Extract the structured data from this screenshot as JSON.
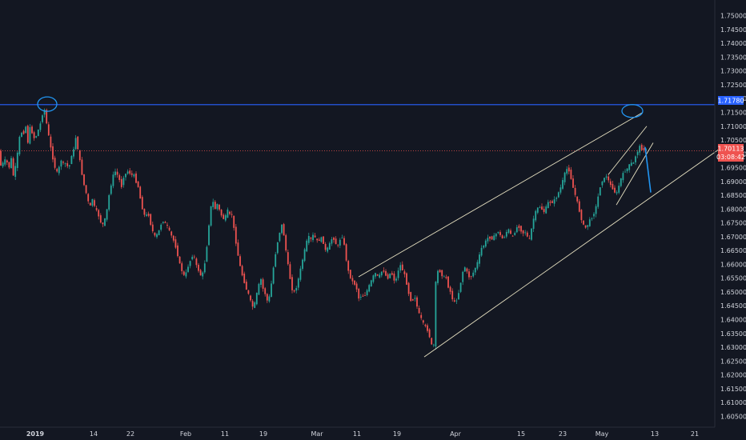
{
  "chart_data": {
    "type": "candlestick",
    "title": "",
    "grid": false,
    "colors": {
      "background": "#131722",
      "up": "#26a69a",
      "down": "#ef5350",
      "trendline": "#e8e2c2",
      "horizontal_level": "#2962ff",
      "price_line": "#ef5350",
      "projection": "#2196f3",
      "axis_text": "#d1d4dc"
    },
    "ylim": [
      1.6025,
      1.7525
    ],
    "y_ticks": [
      "1.75000",
      "1.74500",
      "1.74000",
      "1.73500",
      "1.73000",
      "1.72500",
      "1.72000",
      "1.71500",
      "1.71000",
      "1.70500",
      "1.70000",
      "1.69500",
      "1.69000",
      "1.68500",
      "1.68000",
      "1.67500",
      "1.67000",
      "1.66500",
      "1.66000",
      "1.65500",
      "1.65000",
      "1.64500",
      "1.64000",
      "1.63500",
      "1.63000",
      "1.62500",
      "1.62000",
      "1.61500",
      "1.61000",
      "1.60500"
    ],
    "x_ticks": [
      "2019",
      "14",
      "22",
      "Feb",
      "11",
      "19",
      "Mar",
      "11",
      "19",
      "Apr",
      "15",
      "23",
      "May",
      "13",
      "21"
    ],
    "price_path": [
      [
        0,
        1.695
      ],
      [
        6,
        1.697
      ],
      [
        9,
        1.6985
      ],
      [
        12,
        1.694
      ],
      [
        15,
        1.699
      ],
      [
        18,
        1.692
      ],
      [
        21,
        1.696
      ],
      [
        24,
        1.702
      ],
      [
        27,
        1.709
      ],
      [
        30,
        1.706
      ],
      [
        33,
        1.711
      ],
      [
        36,
        1.704
      ],
      [
        39,
        1.71
      ],
      [
        42,
        1.707
      ],
      [
        45,
        1.705
      ],
      [
        48,
        1.708
      ],
      [
        51,
        1.71
      ],
      [
        54,
        1.714
      ],
      [
        57,
        1.716
      ],
      [
        60,
        1.71
      ],
      [
        63,
        1.705
      ],
      [
        66,
        1.7
      ],
      [
        69,
        1.696
      ],
      [
        72,
        1.693
      ],
      [
        75,
        1.695
      ],
      [
        78,
        1.698
      ],
      [
        81,
        1.696
      ],
      [
        84,
        1.697
      ],
      [
        87,
        1.694
      ],
      [
        90,
        1.699
      ],
      [
        93,
        1.701
      ],
      [
        96,
        1.706
      ],
      [
        99,
        1.701
      ],
      [
        102,
        1.696
      ],
      [
        105,
        1.69
      ],
      [
        108,
        1.687
      ],
      [
        111,
        1.683
      ],
      [
        114,
        1.681
      ],
      [
        117,
        1.684
      ],
      [
        120,
        1.68
      ],
      [
        123,
        1.679
      ],
      [
        126,
        1.676
      ],
      [
        129,
        1.674
      ],
      [
        132,
        1.676
      ],
      [
        135,
        1.68
      ],
      [
        138,
        1.686
      ],
      [
        141,
        1.69
      ],
      [
        144,
        1.694
      ],
      [
        147,
        1.693
      ],
      [
        150,
        1.691
      ],
      [
        153,
        1.688
      ],
      [
        156,
        1.692
      ],
      [
        159,
        1.693
      ],
      [
        162,
        1.694
      ],
      [
        165,
        1.692
      ],
      [
        168,
        1.693
      ],
      [
        171,
        1.69
      ],
      [
        174,
        1.688
      ],
      [
        177,
        1.683
      ],
      [
        180,
        1.679
      ],
      [
        183,
        1.677
      ],
      [
        186,
        1.679
      ],
      [
        189,
        1.675
      ],
      [
        192,
        1.672
      ],
      [
        195,
        1.67
      ],
      [
        198,
        1.671
      ],
      [
        201,
        1.673
      ],
      [
        204,
        1.676
      ],
      [
        207,
        1.675
      ],
      [
        210,
        1.674
      ],
      [
        213,
        1.672
      ],
      [
        216,
        1.67
      ],
      [
        219,
        1.668
      ],
      [
        222,
        1.665
      ],
      [
        225,
        1.661
      ],
      [
        228,
        1.658
      ],
      [
        231,
        1.656
      ],
      [
        234,
        1.657
      ],
      [
        237,
        1.66
      ],
      [
        240,
        1.662
      ],
      [
        243,
        1.664
      ],
      [
        246,
        1.66
      ],
      [
        249,
        1.658
      ],
      [
        252,
        1.656
      ],
      [
        255,
        1.657
      ],
      [
        258,
        1.662
      ],
      [
        261,
        1.67
      ],
      [
        264,
        1.68
      ],
      [
        267,
        1.683
      ],
      [
        270,
        1.68
      ],
      [
        273,
        1.682
      ],
      [
        276,
        1.679
      ],
      [
        279,
        1.677
      ],
      [
        282,
        1.676
      ],
      [
        285,
        1.68
      ],
      [
        288,
        1.678
      ],
      [
        291,
        1.678
      ],
      [
        294,
        1.672
      ],
      [
        297,
        1.666
      ],
      [
        300,
        1.661
      ],
      [
        303,
        1.657
      ],
      [
        306,
        1.654
      ],
      [
        309,
        1.651
      ],
      [
        312,
        1.649
      ],
      [
        315,
        1.646
      ],
      [
        318,
        1.644
      ],
      [
        321,
        1.648
      ],
      [
        324,
        1.652
      ],
      [
        327,
        1.655
      ],
      [
        330,
        1.651
      ],
      [
        333,
        1.649
      ],
      [
        336,
        1.646
      ],
      [
        339,
        1.65
      ],
      [
        342,
        1.657
      ],
      [
        345,
        1.663
      ],
      [
        348,
        1.668
      ],
      [
        351,
        1.672
      ],
      [
        354,
        1.675
      ],
      [
        357,
        1.668
      ],
      [
        360,
        1.662
      ],
      [
        363,
        1.656
      ],
      [
        366,
        1.651
      ],
      [
        369,
        1.65
      ],
      [
        372,
        1.652
      ],
      [
        375,
        1.656
      ],
      [
        378,
        1.66
      ],
      [
        381,
        1.664
      ],
      [
        384,
        1.668
      ],
      [
        387,
        1.67
      ],
      [
        390,
        1.669
      ],
      [
        393,
        1.671
      ],
      [
        396,
        1.669
      ],
      [
        399,
        1.668
      ],
      [
        402,
        1.67
      ],
      [
        405,
        1.668
      ],
      [
        408,
        1.665
      ],
      [
        411,
        1.666
      ],
      [
        414,
        1.668
      ],
      [
        417,
        1.67
      ],
      [
        420,
        1.668
      ],
      [
        423,
        1.666
      ],
      [
        426,
        1.669
      ],
      [
        429,
        1.67
      ],
      [
        432,
        1.666
      ],
      [
        435,
        1.659
      ],
      [
        438,
        1.656
      ],
      [
        441,
        1.654
      ],
      [
        444,
        1.653
      ],
      [
        447,
        1.651
      ],
      [
        450,
        1.647
      ],
      [
        453,
        1.649
      ],
      [
        456,
        1.648
      ],
      [
        459,
        1.65
      ],
      [
        462,
        1.652
      ],
      [
        465,
        1.654
      ],
      [
        468,
        1.656
      ],
      [
        471,
        1.657
      ],
      [
        474,
        1.655
      ],
      [
        477,
        1.657
      ],
      [
        480,
        1.658
      ],
      [
        483,
        1.656
      ],
      [
        486,
        1.655
      ],
      [
        489,
        1.657
      ],
      [
        492,
        1.656
      ],
      [
        495,
        1.653
      ],
      [
        498,
        1.657
      ],
      [
        501,
        1.66
      ],
      [
        504,
        1.658
      ],
      [
        507,
        1.656
      ],
      [
        510,
        1.652
      ],
      [
        513,
        1.648
      ],
      [
        516,
        1.646
      ],
      [
        519,
        1.649
      ],
      [
        522,
        1.645
      ],
      [
        525,
        1.642
      ],
      [
        528,
        1.64
      ],
      [
        531,
        1.638
      ],
      [
        534,
        1.637
      ],
      [
        537,
        1.635
      ],
      [
        540,
        1.631
      ],
      [
        543,
        1.63
      ],
      [
        546,
        1.656
      ],
      [
        549,
        1.658
      ],
      [
        552,
        1.657
      ],
      [
        555,
        1.655
      ],
      [
        558,
        1.656
      ],
      [
        561,
        1.652
      ],
      [
        564,
        1.65
      ],
      [
        567,
        1.647
      ],
      [
        570,
        1.646
      ],
      [
        573,
        1.648
      ],
      [
        576,
        1.652
      ],
      [
        579,
        1.657
      ],
      [
        582,
        1.659
      ],
      [
        585,
        1.657
      ],
      [
        588,
        1.655
      ],
      [
        591,
        1.656
      ],
      [
        594,
        1.658
      ],
      [
        597,
        1.66
      ],
      [
        600,
        1.663
      ],
      [
        603,
        1.666
      ],
      [
        606,
        1.667
      ],
      [
        609,
        1.669
      ],
      [
        612,
        1.67
      ],
      [
        615,
        1.669
      ],
      [
        618,
        1.67
      ],
      [
        621,
        1.671
      ],
      [
        624,
        1.672
      ],
      [
        627,
        1.67
      ],
      [
        630,
        1.669
      ],
      [
        633,
        1.671
      ],
      [
        636,
        1.673
      ],
      [
        639,
        1.671
      ],
      [
        642,
        1.67
      ],
      [
        645,
        1.672
      ],
      [
        648,
        1.674
      ],
      [
        651,
        1.673
      ],
      [
        654,
        1.671
      ],
      [
        657,
        1.672
      ],
      [
        660,
        1.67
      ],
      [
        663,
        1.669
      ],
      [
        666,
        1.674
      ],
      [
        669,
        1.678
      ],
      [
        672,
        1.68
      ],
      [
        675,
        1.681
      ],
      [
        678,
        1.68
      ],
      [
        681,
        1.679
      ],
      [
        684,
        1.681
      ],
      [
        687,
        1.683
      ],
      [
        690,
        1.682
      ],
      [
        693,
        1.683
      ],
      [
        696,
        1.684
      ],
      [
        699,
        1.686
      ],
      [
        702,
        1.688
      ],
      [
        705,
        1.691
      ],
      [
        708,
        1.694
      ],
      [
        711,
        1.695
      ],
      [
        714,
        1.692
      ],
      [
        717,
        1.688
      ],
      [
        720,
        1.685
      ],
      [
        723,
        1.682
      ],
      [
        726,
        1.678
      ],
      [
        729,
        1.675
      ],
      [
        732,
        1.673
      ],
      [
        735,
        1.674
      ],
      [
        738,
        1.676
      ],
      [
        741,
        1.677
      ],
      [
        744,
        1.679
      ],
      [
        747,
        1.682
      ],
      [
        750,
        1.687
      ],
      [
        753,
        1.69
      ],
      [
        756,
        1.691
      ],
      [
        759,
        1.692
      ],
      [
        762,
        1.69
      ],
      [
        765,
        1.688
      ],
      [
        768,
        1.687
      ],
      [
        771,
        1.685
      ],
      [
        774,
        1.688
      ],
      [
        777,
        1.691
      ],
      [
        780,
        1.693
      ],
      [
        783,
        1.694
      ],
      [
        786,
        1.695
      ],
      [
        789,
        1.697
      ],
      [
        792,
        1.696
      ],
      [
        795,
        1.699
      ],
      [
        798,
        1.701
      ],
      [
        801,
        1.703
      ],
      [
        804,
        1.701
      ],
      [
        807,
        1.702
      ],
      [
        810,
        1.7011
      ]
    ],
    "annotations": {
      "horizontal_level": 1.7178,
      "current_price_line": 1.70113,
      "trendlines": [
        {
          "from": [
            448,
            1.6555
          ],
          "to": [
            803,
            1.715
          ]
        },
        {
          "from": [
            530,
            1.6265
          ],
          "to": [
            900,
            1.702
          ]
        },
        {
          "from": [
            760,
            1.6925
          ],
          "to": [
            808,
            1.71
          ]
        },
        {
          "from": [
            770,
            1.6815
          ],
          "to": [
            816,
            1.704
          ]
        }
      ],
      "circles": [
        {
          "center": [
            59,
            1.718
          ],
          "rx": 12,
          "ry": 9
        },
        {
          "center": [
            790,
            1.7155
          ],
          "rx": 13,
          "ry": 8
        }
      ],
      "projection": {
        "from": [
          806,
          1.7025
        ],
        "to": [
          813,
          1.686
        ]
      }
    }
  },
  "price_scale": {
    "level_tag": "1.71780",
    "price_tag": "1.70113",
    "countdown": "03:08:42"
  }
}
